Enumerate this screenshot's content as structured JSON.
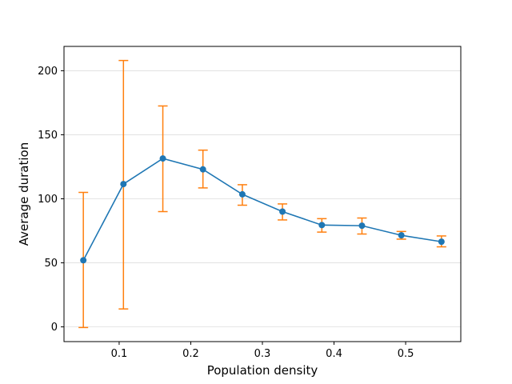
{
  "chart_data": {
    "type": "line",
    "title": "",
    "xlabel": "Population density",
    "ylabel": "Average duration",
    "xlim": [
      0.023,
      0.577
    ],
    "ylim": [
      -11.5,
      219
    ],
    "x_ticks": [
      0.1,
      0.2,
      0.3,
      0.4,
      0.5
    ],
    "x_tick_labels": [
      "0.1",
      "0.2",
      "0.3",
      "0.4",
      "0.5"
    ],
    "y_ticks": [
      0,
      50,
      100,
      150,
      200
    ],
    "y_tick_labels": [
      "0",
      "50",
      "100",
      "150",
      "200"
    ],
    "grid": {
      "y": true,
      "x": false
    },
    "series": [
      {
        "x": [
          0.05,
          0.106,
          0.161,
          0.217,
          0.272,
          0.328,
          0.383,
          0.439,
          0.494,
          0.55
        ],
        "y": [
          52,
          111.5,
          131.5,
          123,
          103.5,
          90,
          79.5,
          79,
          71.5,
          66.5
        ],
        "err_low": [
          52.5,
          97.5,
          41.5,
          14.5,
          8.5,
          6.5,
          5.5,
          6.5,
          3,
          4
        ],
        "err_high": [
          53,
          96.5,
          41,
          15,
          7.5,
          6,
          5,
          6,
          3,
          4.5
        ]
      }
    ],
    "colors": {
      "line": "#1f77b4",
      "errorbar": "#ff7f0e",
      "grid": "#dddddd"
    }
  }
}
